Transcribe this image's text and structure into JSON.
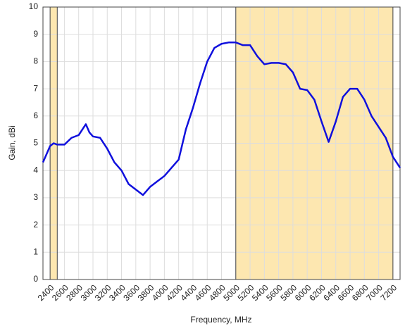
{
  "chart_data": {
    "type": "line",
    "xlabel": "Frequency, MHz",
    "ylabel": "Gain, dBi",
    "x": [
      2300,
      2400,
      2450,
      2500,
      2600,
      2700,
      2800,
      2900,
      2950,
      3000,
      3100,
      3200,
      3300,
      3400,
      3500,
      3600,
      3700,
      3800,
      3900,
      4000,
      4100,
      4200,
      4300,
      4400,
      4500,
      4600,
      4700,
      4800,
      4900,
      5000,
      5100,
      5200,
      5300,
      5400,
      5500,
      5600,
      5700,
      5800,
      5900,
      6000,
      6100,
      6200,
      6300,
      6400,
      6500,
      6600,
      6700,
      6800,
      6900,
      7000,
      7100,
      7200,
      7300
    ],
    "series": [
      {
        "color": "#1010dd",
        "values": [
          4.3,
          4.9,
          5.0,
          4.95,
          4.95,
          5.2,
          5.3,
          5.7,
          5.4,
          5.25,
          5.2,
          4.8,
          4.3,
          4.0,
          3.5,
          3.3,
          3.1,
          3.4,
          3.6,
          3.8,
          4.1,
          4.4,
          5.5,
          6.3,
          7.2,
          8.0,
          8.5,
          8.65,
          8.7,
          8.7,
          8.6,
          8.6,
          8.2,
          7.9,
          7.95,
          7.95,
          7.9,
          7.6,
          7.0,
          6.95,
          6.6,
          5.8,
          5.05,
          5.8,
          6.7,
          7.0,
          7.0,
          6.6,
          6.0,
          5.6,
          5.2,
          4.5,
          4.1
        ]
      }
    ],
    "shaded_regions": [
      [
        2400,
        2500
      ],
      [
        5000,
        7200
      ]
    ],
    "shade_color": "#fde7b0",
    "xlim": [
      2300,
      7300
    ],
    "xticks": [
      2400,
      2600,
      2800,
      3000,
      3200,
      3400,
      3600,
      3800,
      4000,
      4200,
      4400,
      4600,
      4800,
      5000,
      5200,
      5400,
      5600,
      5800,
      6000,
      6200,
      6400,
      6600,
      6800,
      7000,
      7200
    ],
    "ylim": [
      0,
      10
    ],
    "yticks": [
      0,
      1,
      2,
      3,
      4,
      5,
      6,
      7,
      8,
      9,
      10
    ],
    "grid": true
  }
}
